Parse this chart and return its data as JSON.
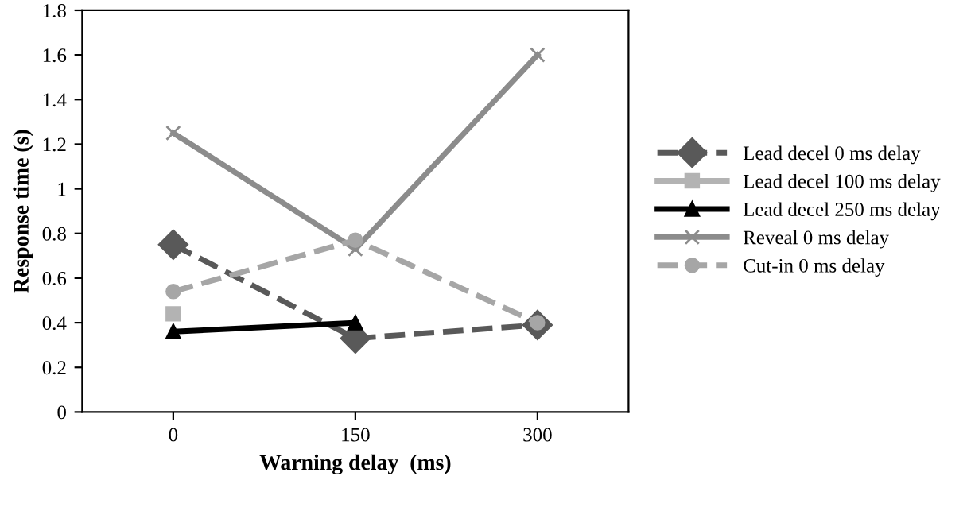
{
  "chart_data": {
    "type": "line",
    "xlabel": "Warning delay  (ms)",
    "ylabel": "Response time (s)",
    "categories": [
      "0",
      "150",
      "300"
    ],
    "ylim": [
      0,
      1.8
    ],
    "yticks": [
      0,
      0.2,
      0.4,
      0.6,
      0.8,
      1,
      1.2,
      1.4,
      1.6,
      1.8
    ],
    "grid": false,
    "legend": "right",
    "series": [
      {
        "name": "Lead decel 0 ms delay",
        "color": "#595959",
        "values": [
          0.75,
          0.33,
          0.39
        ],
        "marker": "diamond",
        "line_style": "dashed"
      },
      {
        "name": "Lead decel 100 ms delay",
        "color": "#b3b3b3",
        "values": [
          0.44,
          null,
          null
        ],
        "marker": "square",
        "line_style": "solid"
      },
      {
        "name": "Lead decel 250 ms delay",
        "color": "#000000",
        "values": [
          0.36,
          0.4,
          null
        ],
        "marker": "triangle",
        "line_style": "solid"
      },
      {
        "name": "Reveal 0 ms delay",
        "color": "#8c8c8c",
        "values": [
          1.25,
          0.73,
          1.6
        ],
        "marker": "cross",
        "line_style": "solid"
      },
      {
        "name": "Cut-in 0 ms delay",
        "color": "#a6a6a6",
        "values": [
          0.54,
          0.77,
          0.4
        ],
        "marker": "circle",
        "line_style": "dashed"
      }
    ]
  }
}
